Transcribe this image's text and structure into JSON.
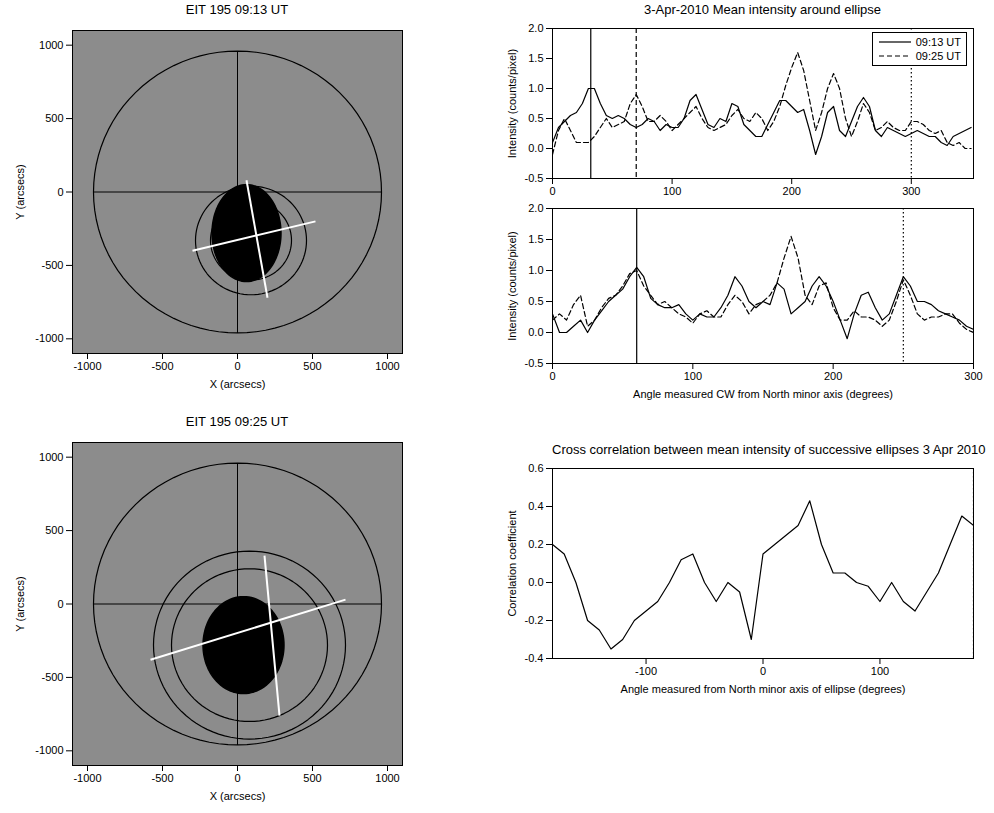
{
  "chart_data": [
    {
      "type": "image",
      "title": "EIT 195 09:13 UT",
      "xlabel": "X (arcsecs)",
      "ylabel": "Y (arcsecs)",
      "xlim": [
        -1100,
        1100
      ],
      "ylim": [
        -1100,
        1100
      ],
      "xticks": [
        -1000,
        -500,
        0,
        500,
        1000
      ],
      "yticks": [
        -1000,
        -500,
        0,
        500,
        1000
      ],
      "dimming": [
        {
          "cx": 60,
          "cy": -280,
          "rx": 230,
          "ry": 330,
          "color": "#000000"
        }
      ],
      "circles": [
        {
          "cx": 0,
          "cy": 0,
          "r": 960,
          "color": "#000000"
        },
        {
          "cx": 90,
          "cy": -330,
          "r": 370,
          "color": "#000000"
        },
        {
          "cx": 90,
          "cy": -330,
          "r": 270,
          "color": "#000000"
        }
      ],
      "lines": [
        {
          "x1": 0,
          "y1": -960,
          "x2": 0,
          "y2": 960,
          "color": "#000000"
        },
        {
          "x1": -960,
          "y1": 0,
          "x2": 960,
          "y2": 0,
          "color": "#000000"
        },
        {
          "x1": 60,
          "y1": 80,
          "x2": 200,
          "y2": -720,
          "color": "#ffffff"
        },
        {
          "x1": -300,
          "y1": -400,
          "x2": 520,
          "y2": -200,
          "color": "#ffffff"
        }
      ]
    },
    {
      "type": "image",
      "title": "EIT 195 09:25 UT",
      "xlabel": "X (arcsecs)",
      "ylabel": "Y (arcsecs)",
      "xlim": [
        -1100,
        1100
      ],
      "ylim": [
        -1100,
        1100
      ],
      "xticks": [
        -1000,
        -500,
        0,
        500,
        1000
      ],
      "yticks": [
        -1000,
        -500,
        0,
        500,
        1000
      ],
      "dimming": [
        {
          "cx": 40,
          "cy": -280,
          "rx": 270,
          "ry": 330,
          "color": "#000000"
        }
      ],
      "circles": [
        {
          "cx": 0,
          "cy": 0,
          "r": 960,
          "color": "#000000"
        },
        {
          "cx": 80,
          "cy": -280,
          "r": 640,
          "color": "#000000"
        },
        {
          "cx": 80,
          "cy": -280,
          "r": 520,
          "color": "#000000"
        }
      ],
      "lines": [
        {
          "x1": 0,
          "y1": -960,
          "x2": 0,
          "y2": 960,
          "color": "#000000"
        },
        {
          "x1": -960,
          "y1": 0,
          "x2": 960,
          "y2": 0,
          "color": "#000000"
        },
        {
          "x1": 180,
          "y1": 330,
          "x2": 280,
          "y2": -760,
          "color": "#ffffff"
        },
        {
          "x1": -580,
          "y1": -380,
          "x2": 720,
          "y2": 30,
          "color": "#ffffff"
        }
      ]
    },
    {
      "type": "line",
      "title": "3-Apr-2010  Mean intensity around ellipse",
      "ylabel": "Intensity (counts/pixel)",
      "xlim": [
        0,
        352
      ],
      "ylim": [
        -0.5,
        2.0
      ],
      "xticks": [
        0,
        100,
        200,
        300
      ],
      "yticks": [
        -0.5,
        {
          "value": 0,
          "label": "0.0"
        },
        0.5,
        {
          "value": 1,
          "label": "1.0"
        },
        1.5,
        {
          "value": 2,
          "label": "2.0"
        }
      ],
      "legend": "top-right",
      "x": [
        0,
        5,
        10,
        15,
        20,
        25,
        30,
        35,
        40,
        45,
        50,
        55,
        60,
        65,
        70,
        75,
        80,
        85,
        90,
        95,
        100,
        105,
        110,
        115,
        120,
        125,
        130,
        135,
        140,
        145,
        150,
        155,
        160,
        165,
        170,
        175,
        180,
        185,
        190,
        195,
        200,
        205,
        210,
        215,
        220,
        225,
        230,
        235,
        240,
        245,
        250,
        255,
        260,
        265,
        270,
        275,
        280,
        285,
        290,
        295,
        300,
        305,
        310,
        315,
        320,
        325,
        330,
        335,
        340,
        345,
        350
      ],
      "series": [
        {
          "name": "09:13 UT",
          "color": "#000000",
          "line_style": "solid",
          "values": [
            0.1,
            0.35,
            0.45,
            0.55,
            0.6,
            0.75,
            1.0,
            1.0,
            0.75,
            0.55,
            0.5,
            0.55,
            0.5,
            0.4,
            0.35,
            0.4,
            0.5,
            0.45,
            0.3,
            0.4,
            0.35,
            0.35,
            0.5,
            0.8,
            0.9,
            0.65,
            0.4,
            0.35,
            0.5,
            0.45,
            0.75,
            0.7,
            0.4,
            0.3,
            0.2,
            0.2,
            0.4,
            0.6,
            0.8,
            0.8,
            0.7,
            0.6,
            0.65,
            0.3,
            -0.1,
            0.2,
            0.6,
            0.7,
            0.3,
            0.2,
            0.45,
            0.7,
            0.85,
            0.7,
            0.3,
            0.2,
            0.35,
            0.3,
            0.25,
            0.2,
            0.25,
            0.3,
            0.25,
            0.2,
            0.2,
            0.1,
            0.05,
            0.2,
            0.25,
            0.3,
            0.35
          ]
        },
        {
          "name": "09:25 UT",
          "color": "#000000",
          "line_style": "dashed",
          "values": [
            -0.1,
            0.3,
            0.5,
            0.3,
            0.1,
            0.1,
            0.1,
            0.2,
            0.35,
            0.5,
            0.35,
            0.4,
            0.45,
            0.75,
            0.9,
            0.7,
            0.45,
            0.45,
            0.55,
            0.45,
            0.3,
            0.4,
            0.5,
            0.6,
            0.7,
            0.5,
            0.35,
            0.3,
            0.35,
            0.4,
            0.55,
            0.65,
            0.5,
            0.45,
            0.6,
            0.5,
            0.3,
            0.45,
            0.7,
            1.05,
            1.35,
            1.6,
            1.3,
            0.8,
            0.3,
            0.6,
            1.0,
            1.25,
            1.0,
            0.5,
            0.2,
            0.45,
            0.75,
            0.6,
            0.3,
            0.35,
            0.45,
            0.35,
            0.3,
            0.3,
            0.45,
            0.45,
            0.4,
            0.3,
            0.25,
            0.3,
            0.1,
            0.05,
            0.1,
            0.0,
            0.0
          ]
        }
      ],
      "markers": [
        {
          "x": 32,
          "line_style": "solid"
        },
        {
          "x": 70,
          "line_style": "dashed"
        },
        {
          "x": 300,
          "line_style": "dotted"
        }
      ]
    },
    {
      "type": "line",
      "xlabel": "Angle measured CW from North minor axis (degrees)",
      "ylabel": "Intensity (counts/pixel)",
      "xlim": [
        0,
        300
      ],
      "ylim": [
        -0.5,
        2.0
      ],
      "xticks": [
        0,
        100,
        200,
        300
      ],
      "yticks": [
        -0.5,
        {
          "value": 0,
          "label": "0.0"
        },
        0.5,
        {
          "value": 1,
          "label": "1.0"
        },
        1.5,
        {
          "value": 2,
          "label": "2.0"
        }
      ],
      "x": [
        0,
        5,
        10,
        15,
        20,
        25,
        30,
        35,
        40,
        45,
        50,
        55,
        60,
        65,
        70,
        75,
        80,
        85,
        90,
        95,
        100,
        105,
        110,
        115,
        120,
        125,
        130,
        135,
        140,
        145,
        150,
        155,
        160,
        165,
        170,
        175,
        180,
        185,
        190,
        195,
        200,
        205,
        210,
        215,
        220,
        225,
        230,
        235,
        240,
        245,
        250,
        255,
        260,
        265,
        270,
        275,
        280,
        285,
        290,
        295,
        300
      ],
      "series": [
        {
          "color": "#000000",
          "line_style": "solid",
          "values": [
            0.3,
            0.0,
            0.0,
            0.1,
            0.2,
            0.0,
            0.2,
            0.35,
            0.5,
            0.6,
            0.7,
            0.9,
            1.05,
            0.9,
            0.55,
            0.45,
            0.4,
            0.4,
            0.45,
            0.3,
            0.2,
            0.3,
            0.25,
            0.25,
            0.4,
            0.6,
            0.9,
            0.75,
            0.5,
            0.4,
            0.5,
            0.45,
            0.8,
            0.7,
            0.3,
            0.4,
            0.5,
            0.75,
            0.9,
            0.75,
            0.5,
            0.2,
            -0.1,
            0.3,
            0.6,
            0.65,
            0.4,
            0.2,
            0.3,
            0.6,
            0.9,
            0.75,
            0.5,
            0.5,
            0.45,
            0.35,
            0.3,
            0.25,
            0.2,
            0.1,
            0.05
          ]
        },
        {
          "color": "#000000",
          "line_style": "dashed",
          "values": [
            0.2,
            0.3,
            0.2,
            0.45,
            0.6,
            0.1,
            0.2,
            0.4,
            0.55,
            0.6,
            0.75,
            0.95,
            1.0,
            0.75,
            0.6,
            0.45,
            0.5,
            0.4,
            0.3,
            0.25,
            0.15,
            0.3,
            0.35,
            0.25,
            0.25,
            0.45,
            0.6,
            0.5,
            0.3,
            0.45,
            0.5,
            0.6,
            0.8,
            1.2,
            1.55,
            1.2,
            0.6,
            0.45,
            0.75,
            0.8,
            0.4,
            0.2,
            0.2,
            0.35,
            0.25,
            0.25,
            0.2,
            0.1,
            0.2,
            0.5,
            0.85,
            0.6,
            0.3,
            0.2,
            0.25,
            0.25,
            0.3,
            0.3,
            0.15,
            0.05,
            0.0
          ]
        }
      ],
      "markers": [
        {
          "x": 60,
          "line_style": "solid"
        },
        {
          "x": 250,
          "line_style": "dotted"
        }
      ]
    },
    {
      "type": "line",
      "title": "Cross correlation between mean intensity of successive ellipses 3 Apr 2010",
      "xlabel": "Angle measured from North minor axis of ellipse (degrees)",
      "ylabel": "Correlation coefficient",
      "xlim": [
        -180,
        180
      ],
      "ylim": [
        -0.4,
        0.6
      ],
      "xticks": [
        -100,
        0,
        100
      ],
      "yticks": [
        -0.4,
        -0.2,
        {
          "value": 0,
          "label": "0.0"
        },
        0.2,
        0.4,
        0.6
      ],
      "x": [
        -180,
        -170,
        -160,
        -150,
        -140,
        -130,
        -120,
        -110,
        -100,
        -90,
        -80,
        -70,
        -60,
        -50,
        -40,
        -30,
        -20,
        -10,
        0,
        10,
        20,
        30,
        40,
        50,
        60,
        70,
        80,
        90,
        100,
        110,
        120,
        130,
        140,
        150,
        160,
        170,
        180
      ],
      "series": [
        {
          "color": "#000000",
          "line_style": "solid",
          "values": [
            0.2,
            0.15,
            0.0,
            -0.2,
            -0.25,
            -0.35,
            -0.3,
            -0.2,
            -0.15,
            -0.1,
            0.0,
            0.12,
            0.15,
            0.0,
            -0.1,
            0.0,
            -0.05,
            -0.3,
            0.15,
            0.2,
            0.25,
            0.3,
            0.43,
            0.2,
            0.05,
            0.05,
            0.0,
            -0.02,
            -0.1,
            0.0,
            -0.1,
            -0.15,
            -0.05,
            0.05,
            0.2,
            0.35,
            0.3
          ]
        }
      ],
      "markers": [
        {
          "x": 180,
          "line_style": "dotted"
        }
      ]
    }
  ]
}
